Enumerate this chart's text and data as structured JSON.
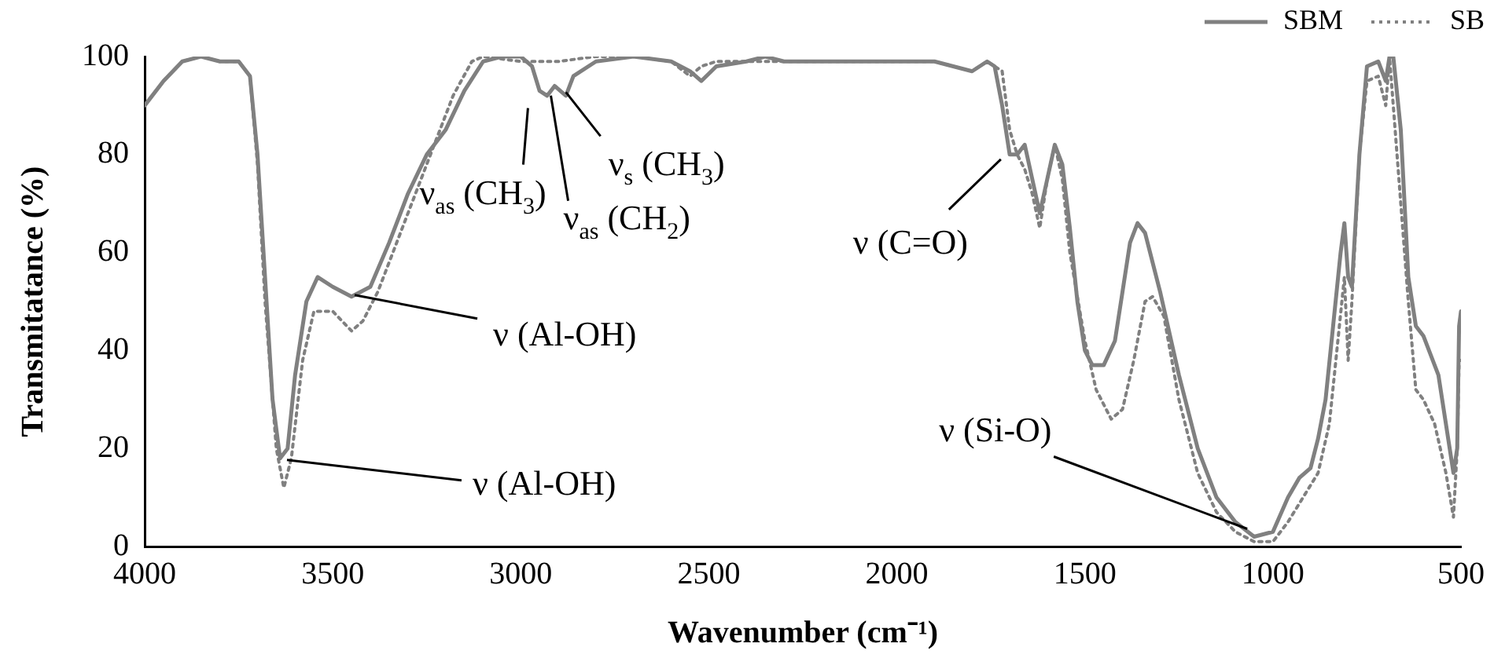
{
  "chart_data": {
    "type": "line",
    "xlabel": "Wavenumber (cm⁻¹)",
    "ylabel": "Transmitatance (%)",
    "xlim": [
      4000,
      500
    ],
    "xticks": [
      4000,
      3500,
      3000,
      2500,
      2000,
      1500,
      1000,
      500
    ],
    "ylim": [
      0,
      100
    ],
    "yticks": [
      0,
      20,
      40,
      60,
      80,
      100
    ],
    "grid": false,
    "legend": "top right",
    "marker": "none",
    "series": [
      {
        "name": "SBM",
        "color": "#808080",
        "line_style": "solid",
        "x": [
          4000,
          3950,
          3900,
          3850,
          3800,
          3750,
          3720,
          3700,
          3680,
          3660,
          3640,
          3620,
          3600,
          3570,
          3540,
          3500,
          3450,
          3400,
          3350,
          3300,
          3250,
          3200,
          3150,
          3100,
          3050,
          3000,
          2970,
          2950,
          2930,
          2910,
          2880,
          2860,
          2800,
          2700,
          2600,
          2550,
          2520,
          2480,
          2400,
          2350,
          2300,
          2200,
          2100,
          2000,
          1900,
          1850,
          1800,
          1760,
          1740,
          1720,
          1700,
          1680,
          1660,
          1640,
          1620,
          1600,
          1580,
          1560,
          1540,
          1520,
          1500,
          1480,
          1450,
          1420,
          1400,
          1380,
          1360,
          1340,
          1300,
          1250,
          1200,
          1150,
          1100,
          1050,
          1000,
          960,
          930,
          900,
          880,
          860,
          840,
          820,
          810,
          800,
          790,
          770,
          750,
          720,
          700,
          690,
          680,
          660,
          640,
          620,
          600,
          560,
          530,
          520,
          510,
          505,
          500
        ],
        "values": [
          90,
          95,
          99,
          100,
          99,
          99,
          96,
          80,
          55,
          30,
          18,
          20,
          35,
          50,
          55,
          53,
          51,
          53,
          62,
          72,
          80,
          85,
          93,
          99,
          100,
          100,
          98,
          93,
          92,
          94,
          92,
          96,
          99,
          100,
          99,
          97,
          95,
          98,
          99,
          100,
          99,
          99,
          99,
          99,
          99,
          98,
          97,
          99,
          98,
          90,
          80,
          80,
          82,
          75,
          68,
          75,
          82,
          78,
          65,
          50,
          40,
          37,
          37,
          42,
          52,
          62,
          66,
          64,
          52,
          35,
          20,
          10,
          5,
          2,
          3,
          10,
          14,
          16,
          22,
          30,
          45,
          60,
          66,
          55,
          53,
          80,
          98,
          99,
          95,
          100,
          100,
          85,
          55,
          45,
          43,
          35,
          20,
          15,
          20,
          45,
          48
        ]
      },
      {
        "name": "SB",
        "color": "#808080",
        "line_style": "dotted",
        "x": [
          4000,
          3950,
          3900,
          3850,
          3800,
          3750,
          3720,
          3700,
          3680,
          3650,
          3630,
          3610,
          3580,
          3550,
          3500,
          3450,
          3420,
          3380,
          3330,
          3280,
          3230,
          3180,
          3130,
          3100,
          3000,
          2900,
          2800,
          2700,
          2600,
          2550,
          2520,
          2480,
          2400,
          2300,
          2200,
          2100,
          2000,
          1900,
          1800,
          1760,
          1720,
          1700,
          1680,
          1660,
          1640,
          1620,
          1600,
          1580,
          1560,
          1540,
          1500,
          1470,
          1430,
          1400,
          1370,
          1340,
          1320,
          1290,
          1250,
          1200,
          1150,
          1100,
          1050,
          1000,
          960,
          920,
          880,
          850,
          830,
          810,
          800,
          790,
          770,
          750,
          720,
          700,
          690,
          670,
          640,
          620,
          600,
          570,
          540,
          520,
          510,
          505,
          500
        ],
        "values": [
          90,
          95,
          99,
          100,
          99,
          99,
          96,
          78,
          50,
          20,
          12,
          18,
          38,
          48,
          48,
          44,
          46,
          52,
          62,
          72,
          82,
          92,
          99,
          100,
          99,
          99,
          100,
          100,
          99,
          96,
          98,
          99,
          99,
          99,
          99,
          99,
          99,
          99,
          97,
          99,
          97,
          85,
          80,
          77,
          72,
          65,
          75,
          82,
          75,
          60,
          42,
          32,
          26,
          28,
          38,
          50,
          51,
          47,
          30,
          15,
          7,
          3,
          1,
          1,
          5,
          10,
          15,
          25,
          40,
          55,
          38,
          50,
          80,
          95,
          96,
          90,
          100,
          80,
          50,
          32,
          30,
          25,
          15,
          6,
          20,
          38,
          38
        ]
      }
    ],
    "annotations": [
      {
        "text": "ν (Al-OH)",
        "x": 3630,
        "y": 18
      },
      {
        "text": "ν (Al-OH)",
        "x": 3450,
        "y": 51
      },
      {
        "text": "ν$_{as}$ (CH$_{3}$)",
        "x": 2960,
        "y": 93
      },
      {
        "text": "ν$_{as}$ (CH$_{2}$)",
        "x": 2920,
        "y": 93
      },
      {
        "text": "ν$_{s}$ (CH$_{3}$)",
        "x": 2880,
        "y": 94
      },
      {
        "text": "ν (C=O)",
        "x": 1690,
        "y": 80
      },
      {
        "text": "ν (Si-O)",
        "x": 1060,
        "y": 2
      }
    ]
  }
}
